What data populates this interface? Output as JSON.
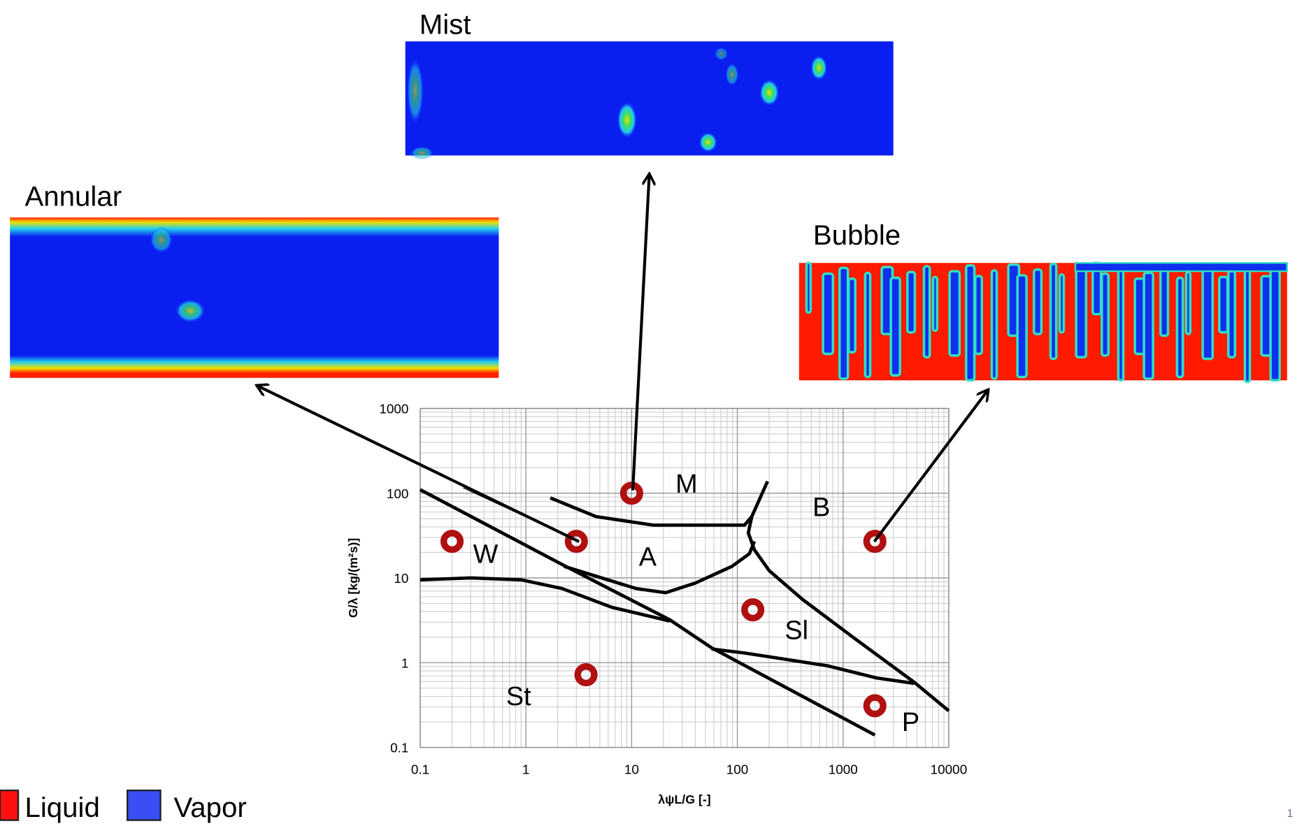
{
  "panels": [
    {
      "title": "Mist"
    },
    {
      "title": "Annular"
    },
    {
      "title": "Bubble"
    }
  ],
  "legend": [
    {
      "label": "Liquid",
      "color": "#ff1010"
    },
    {
      "label": "Vapor",
      "color": "#3a4ef5"
    }
  ],
  "page_number": "1",
  "chart_data": {
    "type": "line",
    "x_label": "λψL/G [-]",
    "y_label": "G/λ [kg/(m²s)]",
    "xlim": [
      0.1,
      10000
    ],
    "ylim": [
      0.1,
      1000
    ],
    "xticks": [
      0.1,
      1,
      10,
      100,
      1000,
      10000
    ],
    "yticks": [
      0.1,
      1,
      10,
      100,
      1000
    ],
    "log_x": true,
    "log_y": true,
    "grid": true,
    "line_color": "#000000",
    "boundaries": [
      {
        "x": [
          0.1,
          2.3,
          23,
          57,
          2000
        ],
        "y": [
          110,
          14,
          3.2,
          1.5,
          0.14
        ]
      },
      {
        "x": [
          0.1,
          0.3,
          0.9,
          2.2,
          6.5,
          23
        ],
        "y": [
          9.5,
          10,
          9.5,
          7.5,
          4.5,
          3.1
        ]
      },
      {
        "x": [
          2.3,
          11,
          21,
          40,
          89,
          130,
          145
        ],
        "y": [
          13.7,
          7.5,
          6.7,
          8.7,
          13.7,
          19.3,
          27
        ]
      },
      {
        "x": [
          1.7,
          4.6,
          16,
          117,
          137
        ],
        "y": [
          88,
          53,
          42,
          42,
          53
        ]
      },
      {
        "x": [
          193,
          137,
          127,
          145,
          200,
          412,
          1220,
          4690,
          10000
        ],
        "y": [
          138,
          53,
          34,
          21.5,
          12.2,
          5.6,
          2.03,
          0.59,
          0.27
        ]
      },
      {
        "x": [
          57,
          117,
          710,
          2080,
          4690
        ],
        "y": [
          1.45,
          1.3,
          0.92,
          0.66,
          0.57
        ]
      }
    ],
    "points": {
      "x": [
        10,
        0.2,
        3,
        2000,
        140,
        3.7,
        2000
      ],
      "y": [
        100,
        27,
        27,
        27,
        4.2,
        0.72,
        0.31
      ],
      "color": "#b01010"
    },
    "annotations": [
      "M",
      "B",
      "A",
      "W",
      "Sl",
      "St",
      "P"
    ]
  }
}
